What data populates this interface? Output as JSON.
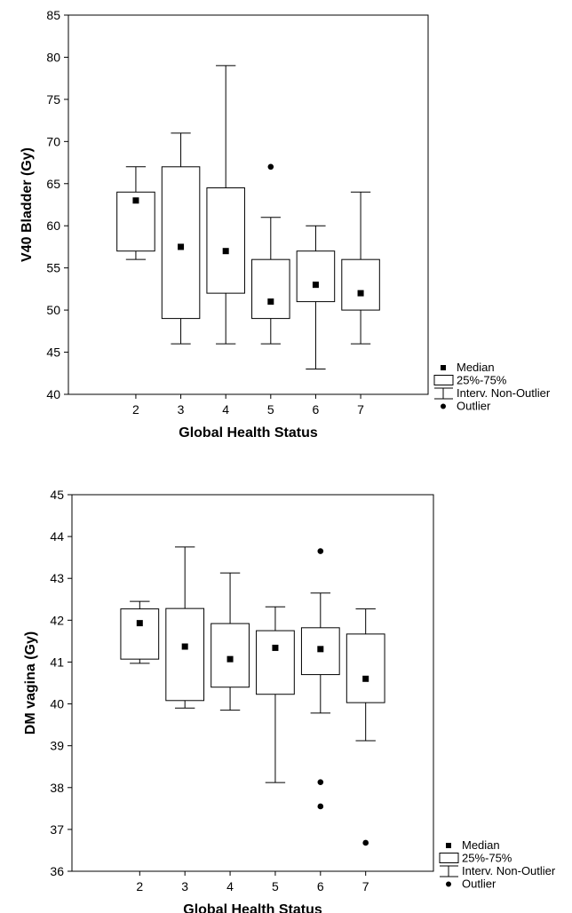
{
  "chart_data": [
    {
      "type": "boxplot",
      "xlabel": "Global Health Status",
      "ylabel": "V40 Bladder (Gy)",
      "ylim": [
        40,
        85
      ],
      "yticks": [
        40,
        45,
        50,
        55,
        60,
        65,
        70,
        75,
        80,
        85
      ],
      "categories": [
        "2",
        "3",
        "4",
        "5",
        "6",
        "7"
      ],
      "boxes": [
        {
          "category": "2",
          "median": 63,
          "q1": 57,
          "q3": 64,
          "whisker_low": 56,
          "whisker_high": 67,
          "outliers": []
        },
        {
          "category": "3",
          "median": 57.5,
          "q1": 49,
          "q3": 67,
          "whisker_low": 46,
          "whisker_high": 71,
          "outliers": []
        },
        {
          "category": "4",
          "median": 57,
          "q1": 52,
          "q3": 64.5,
          "whisker_low": 46,
          "whisker_high": 79,
          "outliers": []
        },
        {
          "category": "5",
          "median": 51,
          "q1": 49,
          "q3": 56,
          "whisker_low": 46,
          "whisker_high": 61,
          "outliers": [
            67
          ]
        },
        {
          "category": "6",
          "median": 53,
          "q1": 51,
          "q3": 57,
          "whisker_low": 43,
          "whisker_high": 60,
          "outliers": []
        },
        {
          "category": "7",
          "median": 52,
          "q1": 50,
          "q3": 56,
          "whisker_low": 46,
          "whisker_high": 64,
          "outliers": []
        }
      ],
      "legend": {
        "placement": "bottom-right",
        "items": [
          "Median",
          "25%-75%",
          "Interv. Non-Outlier",
          "Outlier"
        ]
      }
    },
    {
      "type": "boxplot",
      "xlabel": "Global Health Status",
      "ylabel": "DM vagina (Gy)",
      "ylim": [
        36,
        45
      ],
      "yticks": [
        36,
        37,
        38,
        39,
        40,
        41,
        42,
        43,
        44,
        45
      ],
      "categories": [
        "2",
        "3",
        "4",
        "5",
        "6",
        "7"
      ],
      "boxes": [
        {
          "category": "2",
          "median": 41.93,
          "q1": 41.07,
          "q3": 42.27,
          "whisker_low": 40.97,
          "whisker_high": 42.45,
          "outliers": []
        },
        {
          "category": "3",
          "median": 41.37,
          "q1": 40.08,
          "q3": 42.28,
          "whisker_low": 39.9,
          "whisker_high": 43.75,
          "outliers": []
        },
        {
          "category": "4",
          "median": 41.07,
          "q1": 40.4,
          "q3": 41.92,
          "whisker_low": 39.85,
          "whisker_high": 43.13,
          "outliers": []
        },
        {
          "category": "5",
          "median": 41.34,
          "q1": 40.23,
          "q3": 41.75,
          "whisker_low": 38.12,
          "whisker_high": 42.32,
          "outliers": []
        },
        {
          "category": "6",
          "median": 41.31,
          "q1": 40.7,
          "q3": 41.82,
          "whisker_low": 39.78,
          "whisker_high": 42.65,
          "outliers": [
            43.65,
            38.13,
            37.55
          ]
        },
        {
          "category": "7",
          "median": 40.6,
          "q1": 40.03,
          "q3": 41.67,
          "whisker_low": 39.12,
          "whisker_high": 42.27,
          "outliers": [
            36.68
          ]
        }
      ],
      "legend": {
        "placement": "bottom-right",
        "items": [
          "Median",
          "25%-75%",
          "Interv. Non-Outlier",
          "Outlier"
        ]
      }
    }
  ]
}
